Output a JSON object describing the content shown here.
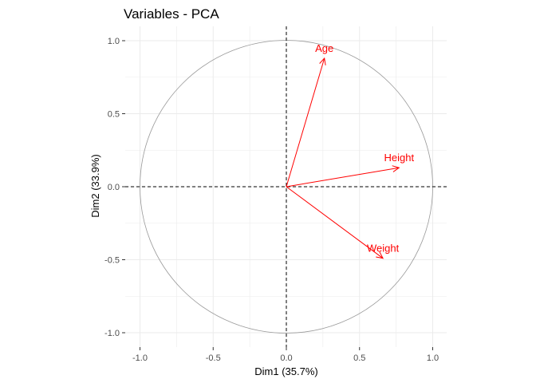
{
  "chart_data": {
    "type": "scatter",
    "title": "Variables - PCA",
    "xlabel": "Dim1 (35.7%)",
    "ylabel": "Dim2 (33.9%)",
    "xlim": [
      -1.1,
      1.1
    ],
    "ylim": [
      -1.1,
      1.1
    ],
    "xticks": [
      -1.0,
      -0.5,
      0.0,
      0.5,
      1.0
    ],
    "yticks": [
      -1.0,
      -0.5,
      0.0,
      0.5,
      1.0
    ],
    "xtick_labels": [
      "-1.0",
      "-0.5",
      "0.0",
      "0.5",
      "1.0"
    ],
    "ytick_labels": [
      "-1.0",
      "-0.5",
      "0.0",
      "0.5",
      "1.0"
    ],
    "grid": true,
    "unit_circle": true,
    "variables": [
      {
        "name": "Age",
        "x": 0.26,
        "y": 0.88
      },
      {
        "name": "Height",
        "x": 0.77,
        "y": 0.13
      },
      {
        "name": "Weight",
        "x": 0.66,
        "y": -0.49
      }
    ],
    "colors": {
      "arrows": "#ff0000",
      "circle": "#999999",
      "grid": "#ebebeb",
      "reference_lines": "#000000"
    }
  }
}
